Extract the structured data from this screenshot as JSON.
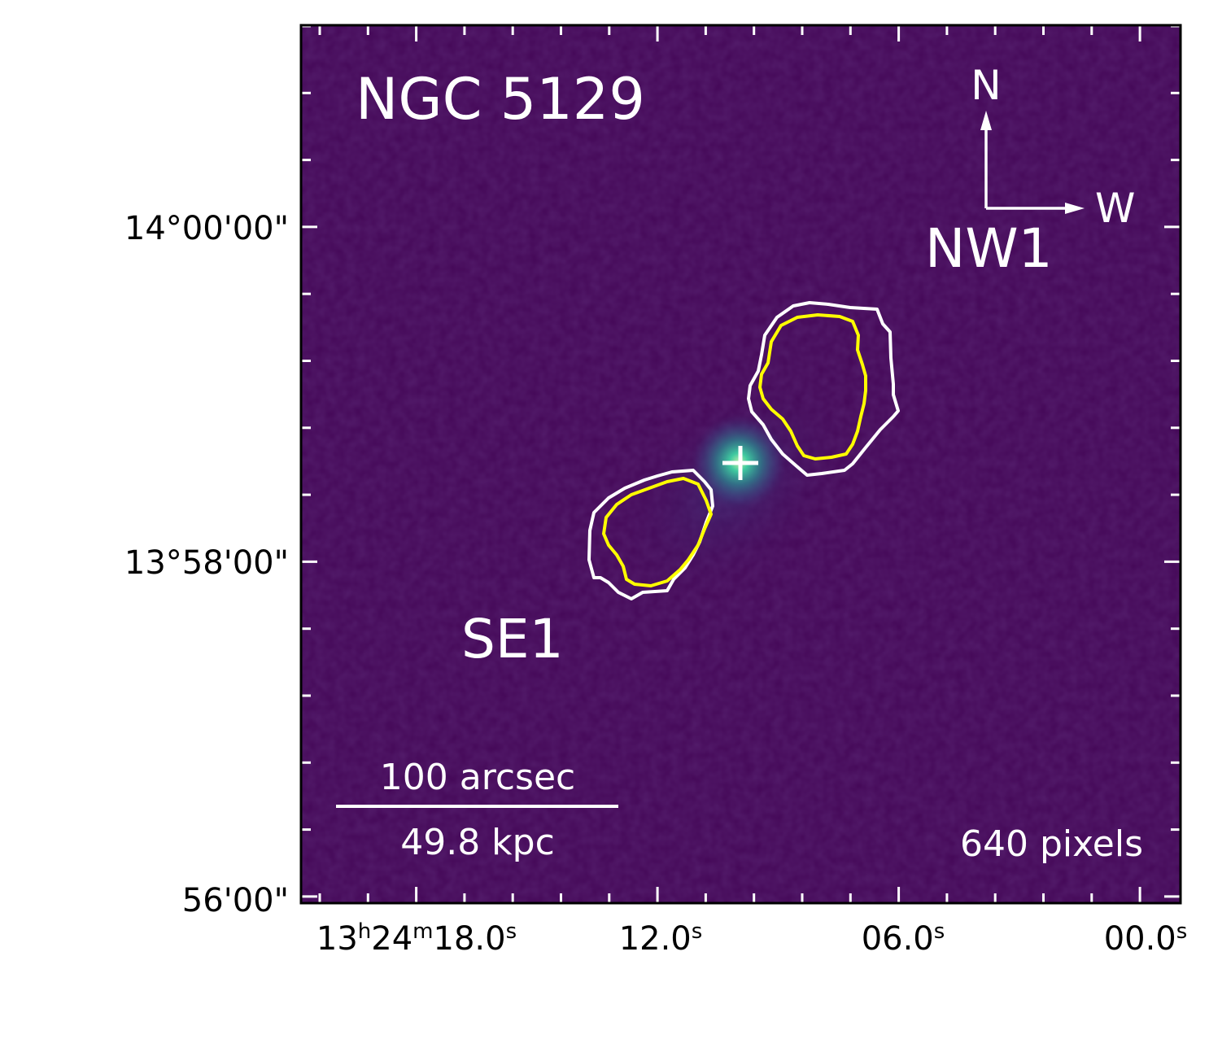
{
  "image": {
    "title": "NGC 5129",
    "labels": {
      "nw": "NW1",
      "se": "SE1"
    },
    "compass": {
      "north": "N",
      "west": "W"
    },
    "scalebar": {
      "angular": "100 arcsec",
      "physical": "49.8 kpc"
    },
    "pixel_note": "640 pixels"
  },
  "axes": {
    "x": {
      "ticks": [
        {
          "main": "13",
          "sup1": "h",
          "part2": "24",
          "sup2": "m",
          "part3": "18.0",
          "sup3": "s"
        },
        {
          "main": "12.0",
          "sup1": "s"
        },
        {
          "main": "06.0",
          "sup1": "s"
        },
        {
          "main": "00.0",
          "sup1": "s"
        }
      ]
    },
    "y": {
      "ticks": [
        "14°00'00\"",
        "13°58'00\"",
        "56'00\""
      ]
    }
  },
  "colors": {
    "background": "#440757",
    "contour_outer": "#ffffff",
    "contour_inner": "#ffff00",
    "center_glow": "#2ec4a0",
    "marker": "#ffffff"
  }
}
